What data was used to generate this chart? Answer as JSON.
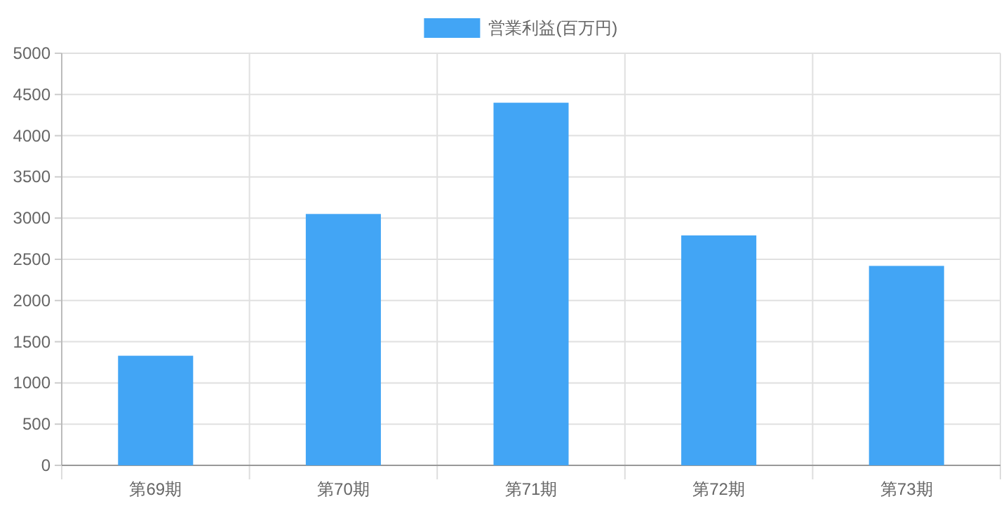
{
  "chart_data": {
    "type": "bar",
    "categories": [
      "第69期",
      "第70期",
      "第71期",
      "第72期",
      "第73期"
    ],
    "series": [
      {
        "name": "営業利益(百万円)",
        "color": "#42a5f5",
        "values": [
          1330,
          3050,
          4400,
          2790,
          2420
        ]
      }
    ],
    "ylim": [
      0,
      5000
    ],
    "yticks": [
      0,
      500,
      1000,
      1500,
      2000,
      2500,
      3000,
      3500,
      4000,
      4500,
      5000
    ],
    "grid": true,
    "legend": "top"
  }
}
